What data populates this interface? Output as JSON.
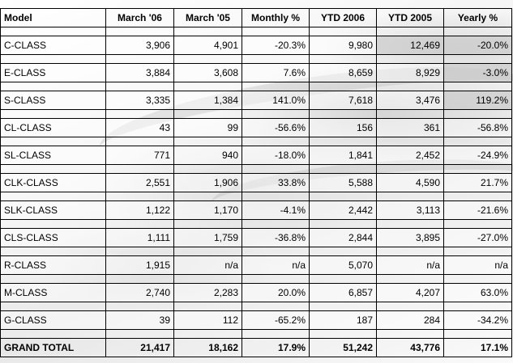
{
  "columns": [
    "Model",
    "March '06",
    "March '05",
    "Monthly %",
    "YTD 2006",
    "YTD 2005",
    "Yearly %"
  ],
  "rows": [
    [
      "C-CLASS",
      "3,906",
      "4,901",
      "-20.3%",
      "9,980",
      "12,469",
      "-20.0%"
    ],
    [
      "E-CLASS",
      "3,884",
      "3,608",
      "7.6%",
      "8,659",
      "8,929",
      "-3.0%"
    ],
    [
      "S-CLASS",
      "3,335",
      "1,384",
      "141.0%",
      "7,618",
      "3,476",
      "119.2%"
    ],
    [
      "CL-CLASS",
      "43",
      "99",
      "-56.6%",
      "156",
      "361",
      "-56.8%"
    ],
    [
      "SL-CLASS",
      "771",
      "940",
      "-18.0%",
      "1,841",
      "2,452",
      "-24.9%"
    ],
    [
      "CLK-CLASS",
      "2,551",
      "1,906",
      "33.8%",
      "5,588",
      "4,590",
      "21.7%"
    ],
    [
      "SLK-CLASS",
      "1,122",
      "1,170",
      "-4.1%",
      "2,442",
      "3,113",
      "-21.6%"
    ],
    [
      "CLS-CLASS",
      "1,111",
      "1,759",
      "-36.8%",
      "2,844",
      "3,895",
      "-27.0%"
    ],
    [
      "R-CLASS",
      "1,915",
      "n/a",
      "n/a",
      "5,070",
      "n/a",
      "n/a"
    ],
    [
      "M-CLASS",
      "2,740",
      "2,283",
      "20.0%",
      "6,857",
      "4,207",
      "63.0%"
    ],
    [
      "G-CLASS",
      "39",
      "112",
      "-65.2%",
      "187",
      "284",
      "-34.2%"
    ]
  ],
  "total": [
    "GRAND TOTAL",
    "21,417",
    "18,162",
    "17.9%",
    "51,242",
    "43,776",
    "17.1%"
  ],
  "colors": {
    "border": "#000000",
    "shaded_cell": "#cdcdcd"
  }
}
